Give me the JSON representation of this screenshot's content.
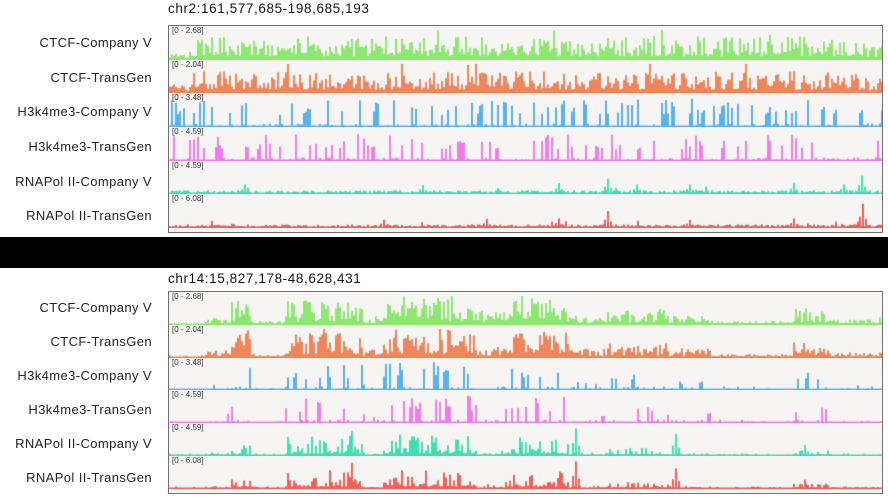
{
  "panels": [
    {
      "title": "chr2:161,577,685-198,685,193",
      "tracks": [
        {
          "label": "CTCF-Company V",
          "range": "[0 - 2.68]",
          "color": "#8CE96F",
          "style": "dense",
          "seed": 101,
          "envelope": [
            [
              0,
              0.03,
              0.35
            ],
            [
              0.03,
              0.97,
              0.8
            ],
            [
              0.97,
              1,
              0.55
            ]
          ]
        },
        {
          "label": "CTCF-TransGen",
          "range": "[0 - 2.04]",
          "color": "#F1855A",
          "style": "dense",
          "seed": 102,
          "envelope": [
            [
              0,
              0.03,
              0.3
            ],
            [
              0.03,
              0.97,
              0.75
            ],
            [
              0.97,
              1,
              0.5
            ]
          ]
        },
        {
          "label": "H3k4me3-Company V",
          "range": "[0 - 3.48]",
          "color": "#58B2EC",
          "style": "spikes",
          "seed": 103,
          "envelope": [
            [
              0,
              1,
              0.95
            ]
          ]
        },
        {
          "label": "H3k4me3-TransGen",
          "range": "[0 - 4.59]",
          "color": "#EE7DEB",
          "style": "spikes",
          "seed": 104,
          "envelope": [
            [
              0,
              1,
              0.9
            ]
          ]
        },
        {
          "label": "RNAPol II-Company V",
          "range": "[0 - 4.59]",
          "color": "#3EE0B2",
          "style": "quiet",
          "seed": 105,
          "envelope": [
            [
              0,
              1,
              0.22
            ]
          ],
          "spikes": [
            [
              0.105,
              0.3
            ],
            [
              0.355,
              0.28
            ],
            [
              0.545,
              0.35
            ],
            [
              0.615,
              0.5
            ],
            [
              0.655,
              0.3
            ],
            [
              0.73,
              0.3
            ],
            [
              0.875,
              0.35
            ],
            [
              0.945,
              0.3
            ],
            [
              0.97,
              0.62
            ]
          ]
        },
        {
          "label": "RNAPol II-TransGen",
          "range": "[0 - 6.08]",
          "color": "#EF6158",
          "style": "quiet",
          "seed": 106,
          "envelope": [
            [
              0,
              1,
              0.2
            ]
          ],
          "spikes": [
            [
              0.3,
              0.25
            ],
            [
              0.445,
              0.28
            ],
            [
              0.545,
              0.3
            ],
            [
              0.615,
              0.55
            ],
            [
              0.73,
              0.25
            ],
            [
              0.875,
              0.3
            ],
            [
              0.972,
              0.8
            ]
          ]
        }
      ]
    },
    {
      "title": "chr14:15,827,178-48,628,431",
      "tracks": [
        {
          "label": "CTCF-Company V",
          "range": "[0 - 2.68]",
          "color": "#8CE96F",
          "style": "dense",
          "seed": 201,
          "envelope": [
            [
              0,
              0.05,
              0.03
            ],
            [
              0.05,
              0.085,
              0.25
            ],
            [
              0.085,
              0.115,
              0.95
            ],
            [
              0.115,
              0.16,
              0.12
            ],
            [
              0.16,
              0.27,
              0.85
            ],
            [
              0.27,
              0.3,
              0.28
            ],
            [
              0.3,
              0.43,
              1.0
            ],
            [
              0.43,
              0.47,
              0.45
            ],
            [
              0.47,
              0.56,
              0.9
            ],
            [
              0.56,
              0.61,
              0.3
            ],
            [
              0.61,
              0.7,
              0.5
            ],
            [
              0.7,
              0.76,
              0.3
            ],
            [
              0.76,
              0.875,
              0.12
            ],
            [
              0.875,
              0.925,
              0.5
            ],
            [
              0.925,
              1,
              0.18
            ]
          ]
        },
        {
          "label": "CTCF-TransGen",
          "range": "[0 - 2.04]",
          "color": "#F1855A",
          "style": "dense",
          "seed": 202,
          "envelope": [
            [
              0,
              0.05,
              0.03
            ],
            [
              0.05,
              0.085,
              0.25
            ],
            [
              0.085,
              0.115,
              0.95
            ],
            [
              0.115,
              0.16,
              0.12
            ],
            [
              0.16,
              0.27,
              0.85
            ],
            [
              0.27,
              0.3,
              0.28
            ],
            [
              0.3,
              0.43,
              1.0
            ],
            [
              0.43,
              0.47,
              0.45
            ],
            [
              0.47,
              0.56,
              0.9
            ],
            [
              0.56,
              0.61,
              0.3
            ],
            [
              0.61,
              0.7,
              0.5
            ],
            [
              0.7,
              0.76,
              0.3
            ],
            [
              0.76,
              0.875,
              0.12
            ],
            [
              0.875,
              0.925,
              0.5
            ],
            [
              0.925,
              1,
              0.18
            ]
          ]
        },
        {
          "label": "H3k4me3-Company V",
          "range": "[0 - 3.48]",
          "color": "#58B2EC",
          "style": "spikes",
          "seed": 203,
          "envelope": [
            [
              0,
              0.05,
              0.02
            ],
            [
              0.05,
              0.085,
              0.3
            ],
            [
              0.085,
              0.115,
              0.95
            ],
            [
              0.115,
              0.16,
              0.1
            ],
            [
              0.16,
              0.27,
              0.9
            ],
            [
              0.27,
              0.3,
              0.3
            ],
            [
              0.3,
              0.43,
              1.0
            ],
            [
              0.43,
              0.47,
              0.4
            ],
            [
              0.47,
              0.56,
              0.95
            ],
            [
              0.56,
              0.61,
              0.3
            ],
            [
              0.61,
              0.7,
              0.6
            ],
            [
              0.7,
              0.76,
              0.35
            ],
            [
              0.76,
              0.875,
              0.1
            ],
            [
              0.875,
              0.925,
              0.6
            ],
            [
              0.925,
              1,
              0.18
            ]
          ]
        },
        {
          "label": "H3k4me3-TransGen",
          "range": "[0 - 4.59]",
          "color": "#EE7DEB",
          "style": "spikes",
          "seed": 204,
          "envelope": [
            [
              0,
              0.05,
              0.02
            ],
            [
              0.05,
              0.085,
              0.3
            ],
            [
              0.085,
              0.115,
              0.95
            ],
            [
              0.115,
              0.16,
              0.1
            ],
            [
              0.16,
              0.27,
              0.9
            ],
            [
              0.27,
              0.3,
              0.3
            ],
            [
              0.3,
              0.43,
              1.0
            ],
            [
              0.43,
              0.47,
              0.4
            ],
            [
              0.47,
              0.56,
              0.95
            ],
            [
              0.56,
              0.61,
              0.3
            ],
            [
              0.61,
              0.7,
              0.6
            ],
            [
              0.7,
              0.76,
              0.35
            ],
            [
              0.76,
              0.875,
              0.1
            ],
            [
              0.875,
              0.925,
              0.6
            ],
            [
              0.925,
              1,
              0.18
            ]
          ]
        },
        {
          "label": "RNAPol II-Company V",
          "range": "[0 - 4.59]",
          "color": "#3EE0B2",
          "style": "smooth",
          "seed": 205,
          "envelope": [
            [
              0,
              0.05,
              0.03
            ],
            [
              0.05,
              0.085,
              0.2
            ],
            [
              0.085,
              0.115,
              0.6
            ],
            [
              0.115,
              0.16,
              0.1
            ],
            [
              0.16,
              0.27,
              0.8
            ],
            [
              0.27,
              0.3,
              0.2
            ],
            [
              0.3,
              0.43,
              0.85
            ],
            [
              0.43,
              0.47,
              0.3
            ],
            [
              0.47,
              0.56,
              0.8
            ],
            [
              0.56,
              0.61,
              0.2
            ],
            [
              0.61,
              0.7,
              0.4
            ],
            [
              0.7,
              0.76,
              0.2
            ],
            [
              0.76,
              0.875,
              0.08
            ],
            [
              0.875,
              0.925,
              0.35
            ],
            [
              0.925,
              1,
              0.12
            ]
          ],
          "spikes": [
            [
              0.255,
              0.85
            ],
            [
              0.57,
              0.95
            ],
            [
              0.71,
              0.75
            ],
            [
              0.89,
              0.35
            ]
          ]
        },
        {
          "label": "RNAPol II-TransGen",
          "range": "[0 - 6.08]",
          "color": "#EF6158",
          "style": "smooth",
          "seed": 206,
          "envelope": [
            [
              0,
              0.05,
              0.03
            ],
            [
              0.05,
              0.085,
              0.2
            ],
            [
              0.085,
              0.115,
              0.55
            ],
            [
              0.115,
              0.16,
              0.1
            ],
            [
              0.16,
              0.27,
              0.75
            ],
            [
              0.27,
              0.3,
              0.2
            ],
            [
              0.3,
              0.43,
              0.8
            ],
            [
              0.43,
              0.47,
              0.3
            ],
            [
              0.47,
              0.56,
              0.75
            ],
            [
              0.56,
              0.61,
              0.2
            ],
            [
              0.61,
              0.7,
              0.35
            ],
            [
              0.7,
              0.76,
              0.2
            ],
            [
              0.76,
              0.875,
              0.08
            ],
            [
              0.875,
              0.925,
              0.3
            ],
            [
              0.925,
              1,
              0.12
            ]
          ],
          "spikes": [
            [
              0.255,
              0.9
            ],
            [
              0.57,
              0.95
            ],
            [
              0.71,
              0.7
            ],
            [
              0.89,
              0.3
            ]
          ]
        }
      ]
    }
  ]
}
